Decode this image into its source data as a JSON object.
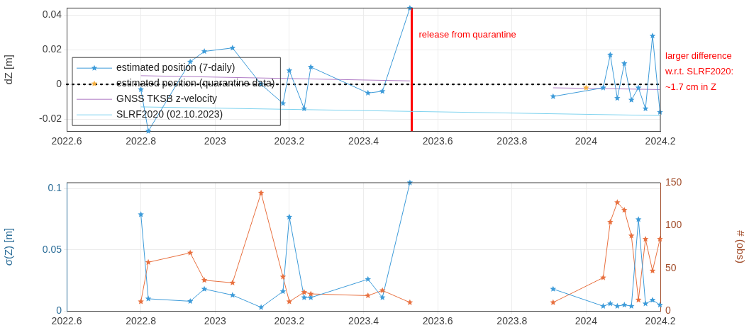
{
  "chart_data": [
    {
      "type": "line",
      "ylabel": "dZ [m]",
      "xlim": [
        2022.6,
        2024.2
      ],
      "xticks": [
        2022.6,
        2022.8,
        2023,
        2023.2,
        2023.4,
        2023.6,
        2023.8,
        2024,
        2024.2
      ],
      "ylim": [
        -0.027,
        0.044
      ],
      "yticks": [
        -0.02,
        0,
        0.02,
        0.04
      ],
      "grid": true,
      "legend": "bottom left",
      "series": [
        {
          "name": "estimated position (7-daily)",
          "type": "line",
          "marker": "star",
          "color": "#3d9bd9",
          "x": [
            2022.8,
            2022.82,
            2022.933,
            2022.971,
            2023.047,
            2023.124,
            2023.183,
            2023.2,
            2023.24,
            2023.258,
            2023.412,
            2023.451,
            2023.525,
            2023.7,
            2023.911,
            2024.046,
            2024.065,
            2024.084,
            2024.103,
            2024.122,
            2024.141,
            2024.16,
            2024.179,
            2024.199
          ],
          "values": [
            -0.003,
            -0.027,
            0.013,
            0.019,
            0.021,
            0.0,
            -0.011,
            0.008,
            -0.014,
            0.01,
            -0.005,
            -0.004,
            0.044,
            null,
            -0.007,
            -0.002,
            0.017,
            -0.008,
            0.012,
            -0.009,
            -0.002,
            -0.014,
            0.028,
            -0.016
          ]
        },
        {
          "name": "estimated position (quarantine data)",
          "type": "scatter",
          "marker": "star",
          "color": "#f5b041",
          "x": [
            2024.0
          ],
          "values": [
            -0.002
          ]
        },
        {
          "name": "GNSS TKSB z-velocity",
          "type": "line",
          "marker": "none",
          "color": "#b07cc6",
          "x": [
            2022.8,
            2023.525,
            2023.7,
            2023.911,
            2024.199
          ],
          "values": [
            0.005,
            0.002,
            null,
            -0.002,
            -0.003
          ]
        },
        {
          "name": "SLRF2020 (02.10.2023)",
          "type": "line",
          "marker": "none",
          "color": "#7fd3ef",
          "x": [
            2022.8,
            2024.199
          ],
          "values": [
            -0.013,
            -0.018
          ]
        }
      ],
      "ref_lines": [
        {
          "axis": "y",
          "value": 0,
          "color": "#000000",
          "line_style": "dotted"
        },
        {
          "axis": "x",
          "value": 2023.53,
          "label": "release from quarantine",
          "color": "#ff0000",
          "line_style": "solid"
        }
      ],
      "annotations": [
        "larger difference w.r.t. SLRF2020: ~1.7 cm in Z"
      ]
    },
    {
      "type": "line",
      "ylabel": "σ(Z) [m]",
      "y2label": "# (obs)",
      "xlim": [
        2022.6,
        2024.2
      ],
      "xticks": [
        2022.6,
        2022.8,
        2023,
        2023.2,
        2023.4,
        2023.6,
        2023.8,
        2024,
        2024.2
      ],
      "ylim": [
        0,
        0.105
      ],
      "yticks": [
        0,
        0.05,
        0.1
      ],
      "y2lim": [
        0,
        150
      ],
      "y2ticks": [
        0,
        50,
        100,
        150
      ],
      "grid": true,
      "series": [
        {
          "type": "line",
          "marker": "star",
          "color": "#3d9bd9",
          "x": [
            2022.8,
            2022.82,
            2022.933,
            2022.971,
            2023.047,
            2023.124,
            2023.183,
            2023.2,
            2023.24,
            2023.258,
            2023.412,
            2023.451,
            2023.525,
            2023.7,
            2023.911,
            2024.046,
            2024.065,
            2024.084,
            2024.103,
            2024.122,
            2024.141,
            2024.16,
            2024.179,
            2024.199
          ],
          "values": [
            0.079,
            0.01,
            0.008,
            0.018,
            0.013,
            0.003,
            0.016,
            0.077,
            0.011,
            0.011,
            0.026,
            0.011,
            0.105,
            null,
            0.018,
            0.004,
            0.006,
            0.004,
            0.005,
            0.004,
            0.075,
            0.006,
            0.009,
            0.005
          ]
        },
        {
          "type": "line",
          "marker": "star",
          "axis": "y2",
          "color": "#e8703f",
          "x": [
            2022.8,
            2022.82,
            2022.933,
            2022.971,
            2023.047,
            2023.124,
            2023.183,
            2023.2,
            2023.24,
            2023.258,
            2023.412,
            2023.451,
            2023.525,
            2023.7,
            2023.911,
            2024.046,
            2024.065,
            2024.084,
            2024.103,
            2024.122,
            2024.141,
            2024.16,
            2024.179,
            2024.199
          ],
          "values": [
            11,
            57,
            68,
            36,
            33,
            138,
            40,
            11,
            22,
            20,
            18,
            24,
            10,
            null,
            10,
            39,
            104,
            127,
            118,
            88,
            13,
            84,
            47,
            84
          ]
        }
      ]
    }
  ]
}
